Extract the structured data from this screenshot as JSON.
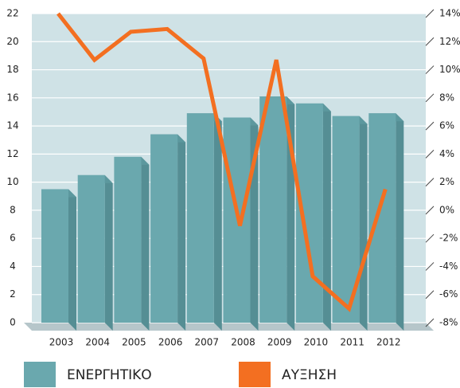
{
  "chart_data": {
    "type": "bar-line",
    "categories": [
      "2003",
      "2004",
      "2005",
      "2006",
      "2007",
      "2008",
      "2009",
      "2010",
      "2011",
      "2012"
    ],
    "series": [
      {
        "name": "ΕΝΕΡΓΗΤΙΚΟ",
        "color": "#6aa8ae",
        "values": [
          9.5,
          10.5,
          11.8,
          13.4,
          14.9,
          14.6,
          16.1,
          15.6,
          14.7,
          14.9
        ]
      },
      {
        "name": "ΑΥΞΗΣΗ",
        "color": "#f36f21",
        "axis": "y2",
        "values": [
          14,
          10.7,
          12.7,
          12.9,
          10.8,
          -1.1,
          10.7,
          -4.7,
          -7,
          1.5
        ]
      }
    ],
    "ylim": [
      0,
      22
    ],
    "yticks": [
      0,
      2,
      4,
      6,
      8,
      10,
      12,
      14,
      16,
      18,
      20,
      22
    ],
    "y2lim": [
      -8,
      14
    ],
    "y2ticks": [
      {
        "value": -8,
        "label": "-8%"
      },
      {
        "value": -6,
        "label": "-6%"
      },
      {
        "value": -4,
        "label": "-4%"
      },
      {
        "value": -2,
        "label": "-2%"
      },
      {
        "value": 0,
        "label": "0%"
      },
      {
        "value": 2,
        "label": "2%"
      },
      {
        "value": 4,
        "label": "4%"
      },
      {
        "value": 6,
        "label": "6%"
      },
      {
        "value": 8,
        "label": "8%"
      },
      {
        "value": 10,
        "label": "10%"
      },
      {
        "value": 12,
        "label": "12%"
      },
      {
        "value": 14,
        "label": "14%"
      }
    ],
    "grid": true
  }
}
